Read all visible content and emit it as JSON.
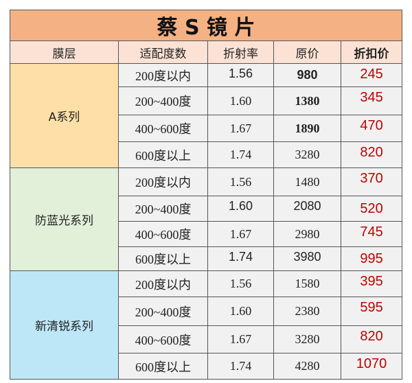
{
  "title": "蔡 S 镜 片",
  "headers": [
    "膜层",
    "适配度数",
    "折射率",
    "原价",
    "折扣价"
  ],
  "colors": {
    "title_bg": "#f4b183",
    "header_bg": "#fbe2d5",
    "discount_text": "#c00000"
  },
  "groups": [
    {
      "name": "A系列",
      "color": "#ffdfa8",
      "rows": [
        {
          "range": "200度以内",
          "index": "1.56",
          "price": "980",
          "discount": "245"
        },
        {
          "range": "200~400度",
          "index": "1.60",
          "price": "1380",
          "discount": "345"
        },
        {
          "range": "400~600度",
          "index": "1.67",
          "price": "1890",
          "discount": "470"
        },
        {
          "range": "600度以上",
          "index": "1.74",
          "price": "3280",
          "discount": "820"
        }
      ]
    },
    {
      "name": "防蓝光系列",
      "color": "#e2efd9",
      "rows": [
        {
          "range": "200度以内",
          "index": "1.56",
          "price": "1480",
          "discount": "370"
        },
        {
          "range": "200~400度",
          "index": "1.60",
          "price": "2080",
          "discount": "520"
        },
        {
          "range": "400~600度",
          "index": "1.67",
          "price": "2980",
          "discount": "745"
        },
        {
          "range": "600度以上",
          "index": "1.74",
          "price": "3980",
          "discount": "995"
        }
      ]
    },
    {
      "name": "新清锐系列",
      "color": "#bde7f7",
      "rows": [
        {
          "range": "200度以内",
          "index": "1.56",
          "price": "1580",
          "discount": "395"
        },
        {
          "range": "200~400度",
          "index": "1.60",
          "price": "2380",
          "discount": "595"
        },
        {
          "range": "400~600度",
          "index": "1.67",
          "price": "3280",
          "discount": "820"
        },
        {
          "range": "600度以上",
          "index": "1.74",
          "price": "4280",
          "discount": "1070"
        }
      ]
    }
  ]
}
